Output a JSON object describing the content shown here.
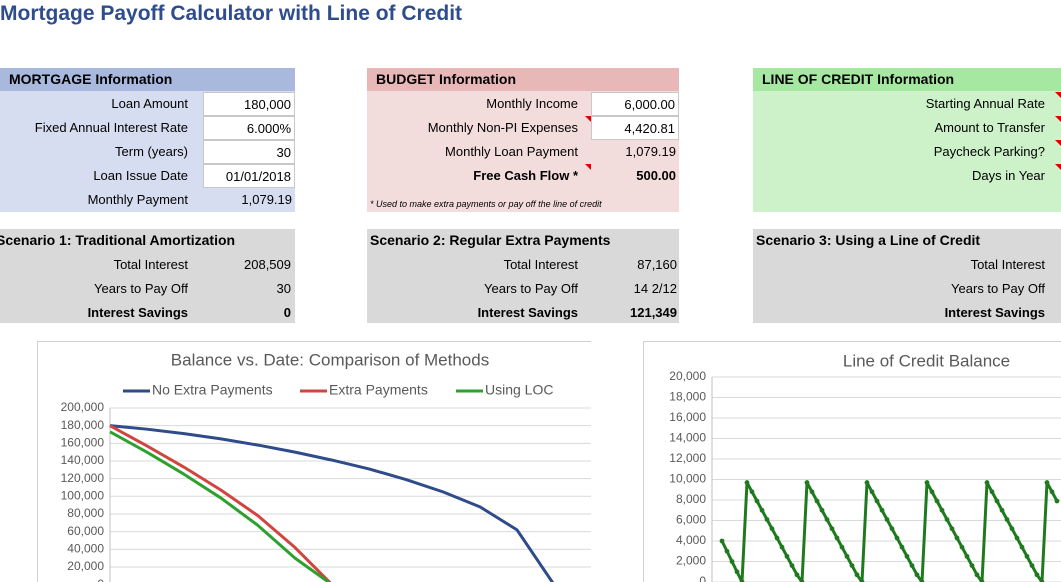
{
  "title": "Mortgage Payoff Calculator with Line of Credit",
  "mortgage": {
    "header": "MORTGAGE Information",
    "rows": [
      [
        "Loan Amount",
        "180,000"
      ],
      [
        "Fixed Annual Interest Rate",
        "6.000%"
      ],
      [
        "Term (years)",
        "30"
      ],
      [
        "Loan Issue Date",
        "01/01/2018"
      ],
      [
        "Monthly Payment",
        "1,079.19"
      ]
    ]
  },
  "budget": {
    "header": "BUDGET Information",
    "rows": [
      [
        "Monthly Income",
        "6,000.00"
      ],
      [
        "Monthly Non-PI Expenses",
        "4,420.81"
      ],
      [
        "Monthly Loan Payment",
        "1,079.19"
      ],
      [
        "Free Cash Flow *",
        "500.00"
      ]
    ],
    "note": "* Used to make extra payments or pay off the line of credit"
  },
  "line_of_credit": {
    "header": "LINE OF CREDIT Information",
    "rows": [
      [
        "Starting Annual Rate"
      ],
      [
        "Amount to Transfer"
      ],
      [
        "Paycheck Parking?"
      ],
      [
        "Days in Year"
      ]
    ]
  },
  "scenarios": [
    {
      "title": "Scenario 1: Traditional Amortization",
      "rows": [
        [
          "Total Interest",
          "208,509"
        ],
        [
          "Years to Pay Off",
          "30"
        ],
        [
          "Interest Savings",
          "0"
        ]
      ]
    },
    {
      "title": "Scenario 2: Regular Extra Payments",
      "rows": [
        [
          "Total Interest",
          "87,160"
        ],
        [
          "Years to Pay Off",
          "14 2/12"
        ],
        [
          "Interest Savings",
          "121,349"
        ]
      ]
    },
    {
      "title": "Scenario 3: Using a Line of Credit",
      "rows": [
        [
          "Total Interest"
        ],
        [
          "Years to Pay Off"
        ],
        [
          "Interest Savings"
        ]
      ]
    }
  ],
  "chart_data": [
    {
      "type": "line",
      "title": "Balance vs. Date: Comparison of Methods",
      "grid": true,
      "legend": "top",
      "ylim": [
        0,
        200000
      ],
      "yticks": [
        {
          "value": 0,
          "label": "0"
        },
        {
          "value": 20000,
          "label": "20,000"
        },
        {
          "value": 40000,
          "label": "40,000"
        },
        {
          "value": 60000,
          "label": "60,000"
        },
        {
          "value": 80000,
          "label": "80,000"
        },
        {
          "value": 100000,
          "label": "100,000"
        },
        {
          "value": 120000,
          "label": "120,000"
        },
        {
          "value": 140000,
          "label": "140,000"
        },
        {
          "value": 160000,
          "label": "160,000"
        },
        {
          "value": 180000,
          "label": "180,000"
        },
        {
          "value": 200000,
          "label": "200,000"
        }
      ],
      "series": [
        {
          "name": "No Extra Payments",
          "color": "#2f4b8a",
          "values": [
            180000,
            176000,
            171000,
            165000,
            158000,
            150000,
            141000,
            131000,
            119000,
            105000,
            88000,
            62000,
            0
          ]
        },
        {
          "name": "Extra Payments",
          "color": "#d0453f",
          "values": [
            180000,
            157000,
            133000,
            107000,
            78000,
            42000,
            0,
            null,
            null,
            null,
            null,
            null,
            null
          ]
        },
        {
          "name": "Using LOC",
          "color": "#2ea02e",
          "values": [
            173000,
            150000,
            125000,
            98000,
            67000,
            30000,
            0,
            null,
            null,
            null,
            null,
            null,
            null
          ]
        }
      ]
    },
    {
      "type": "line",
      "title": "Line of Credit Balance",
      "grid": true,
      "color": "#1f7a1f",
      "markers": true,
      "ylim": [
        0,
        20000
      ],
      "yticks": [
        0,
        {
          "value": 2000,
          "label": "2,000"
        },
        {
          "value": 4000,
          "label": "4,000"
        },
        {
          "value": 6000,
          "label": "6,000"
        },
        {
          "value": 8000,
          "label": "8,000"
        },
        {
          "value": 10000,
          "label": "10,000"
        },
        {
          "value": 12000,
          "label": "12,000"
        },
        {
          "value": 14000,
          "label": "14,000"
        },
        {
          "value": 16000,
          "label": "16,000"
        },
        {
          "value": 18000,
          "label": "18,000"
        },
        {
          "value": 20000,
          "label": "20,000"
        }
      ],
      "values": [
        4000,
        3000,
        2000,
        1000,
        0,
        9700,
        8800,
        7900,
        7000,
        6100,
        5200,
        4300,
        3400,
        2500,
        1600,
        700,
        0,
        9700,
        8800,
        7900,
        7000,
        6100,
        5200,
        4300,
        3400,
        2500,
        1600,
        700,
        0,
        9700,
        8800,
        7900,
        7000,
        6100,
        5200,
        4300,
        3400,
        2500,
        1600,
        700,
        0,
        9700,
        8800,
        7900,
        7000,
        6100,
        5200,
        4300,
        3400,
        2500,
        1600,
        700,
        0,
        9700,
        8800,
        7900,
        7000,
        6100,
        5200,
        4300,
        3400,
        2500,
        1600,
        700,
        0,
        9700,
        8800,
        7900
      ]
    }
  ]
}
